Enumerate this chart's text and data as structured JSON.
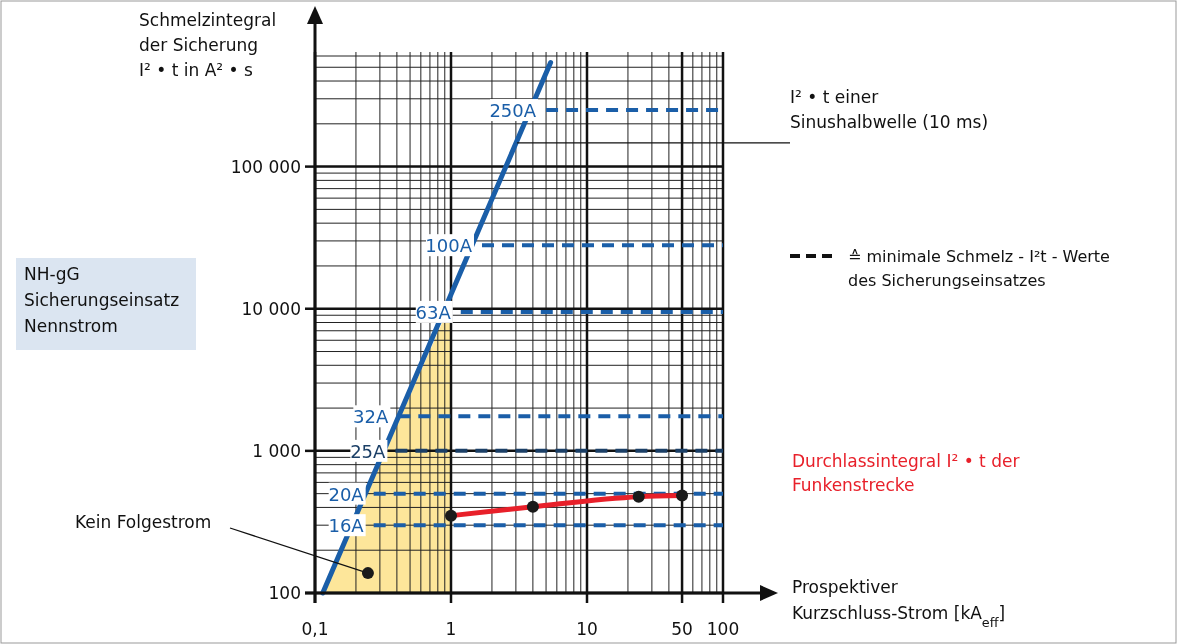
{
  "chart_data": {
    "type": "line",
    "ylabel": "Schmelzintegral\nder Sicherung\nI² • t in A² • s",
    "xlabel": "Prospektiver\nKurzschluss-Strom [kA$_{eff}$]",
    "legend_title": "NH-gG\nSicherungseinsatz\nNennstrom",
    "log": "xy",
    "grid": true,
    "line_style": "solid",
    "xlim": [
      0.1,
      100
    ],
    "xticks": [
      {
        "value": 0.1,
        "label": "0,1"
      },
      1,
      10,
      50,
      100
    ],
    "ylim": [
      100,
      600000
    ],
    "yticks": [
      {
        "value": 100,
        "label": "100"
      },
      {
        "value": 1000,
        "label": "1 000"
      },
      {
        "value": 10000,
        "label": "10 000"
      },
      {
        "value": 100000,
        "label": "100 000"
      }
    ],
    "series": [
      {
        "type": "area",
        "color": "#fde69a",
        "x": [
          0.114,
          1
        ],
        "values": [
          100,
          11000
        ]
      },
      {
        "type": "line",
        "color": "#1a5ea8",
        "x": [
          0.114,
          5.4
        ],
        "values": [
          100,
          540000
        ]
      },
      {
        "name": "250A",
        "type": "line",
        "line_style": "dashed",
        "color": "#1a5ea8",
        "x": [
          5,
          100
        ],
        "values": [
          250000,
          250000
        ]
      },
      {
        "name": "100A",
        "type": "line",
        "line_style": "dashed",
        "color": "#1a5ea8",
        "x": [
          1.69,
          100
        ],
        "values": [
          28000,
          28000
        ]
      },
      {
        "name": "63A",
        "type": "line",
        "line_style": "dashed",
        "color": "#1a5ea8",
        "x": [
          1.18,
          100
        ],
        "values": [
          9500,
          9500
        ]
      },
      {
        "name": "32A",
        "type": "line",
        "line_style": "dashed",
        "color": "#1a5ea8",
        "x": [
          0.41,
          100
        ],
        "values": [
          1750,
          1750
        ]
      },
      {
        "name": "25A",
        "type": "line",
        "line_style": "dashed",
        "color": "#1b3f66",
        "x": [
          0.39,
          100
        ],
        "values": [
          1000,
          1000
        ]
      },
      {
        "name": "20A",
        "type": "line",
        "line_style": "dashed",
        "color": "#1a5ea8",
        "x": [
          0.27,
          100
        ],
        "values": [
          500,
          500
        ]
      },
      {
        "name": "16A",
        "type": "line",
        "line_style": "dashed",
        "color": "#1a5ea8",
        "x": [
          0.27,
          100
        ],
        "values": [
          300,
          300
        ]
      },
      {
        "name": "Durchlassintegral I² • t der\nFunkenstrecke",
        "type": "line",
        "marker": "circle",
        "color": "#e8202a",
        "x": [
          1,
          4,
          24,
          50
        ],
        "values": [
          350,
          405,
          476,
          485
        ]
      }
    ],
    "annotations": [
      "≙ minimale Schmelz - I²t - Werte\ndes Sicherungseinsatzes",
      {
        "text": "Kein Folgestrom",
        "x": 0.245,
        "y": 138
      },
      {
        "text": "I² • t einer\nSinushalbwelle (10 ms)",
        "x": 3.06,
        "y": 147000
      }
    ]
  }
}
